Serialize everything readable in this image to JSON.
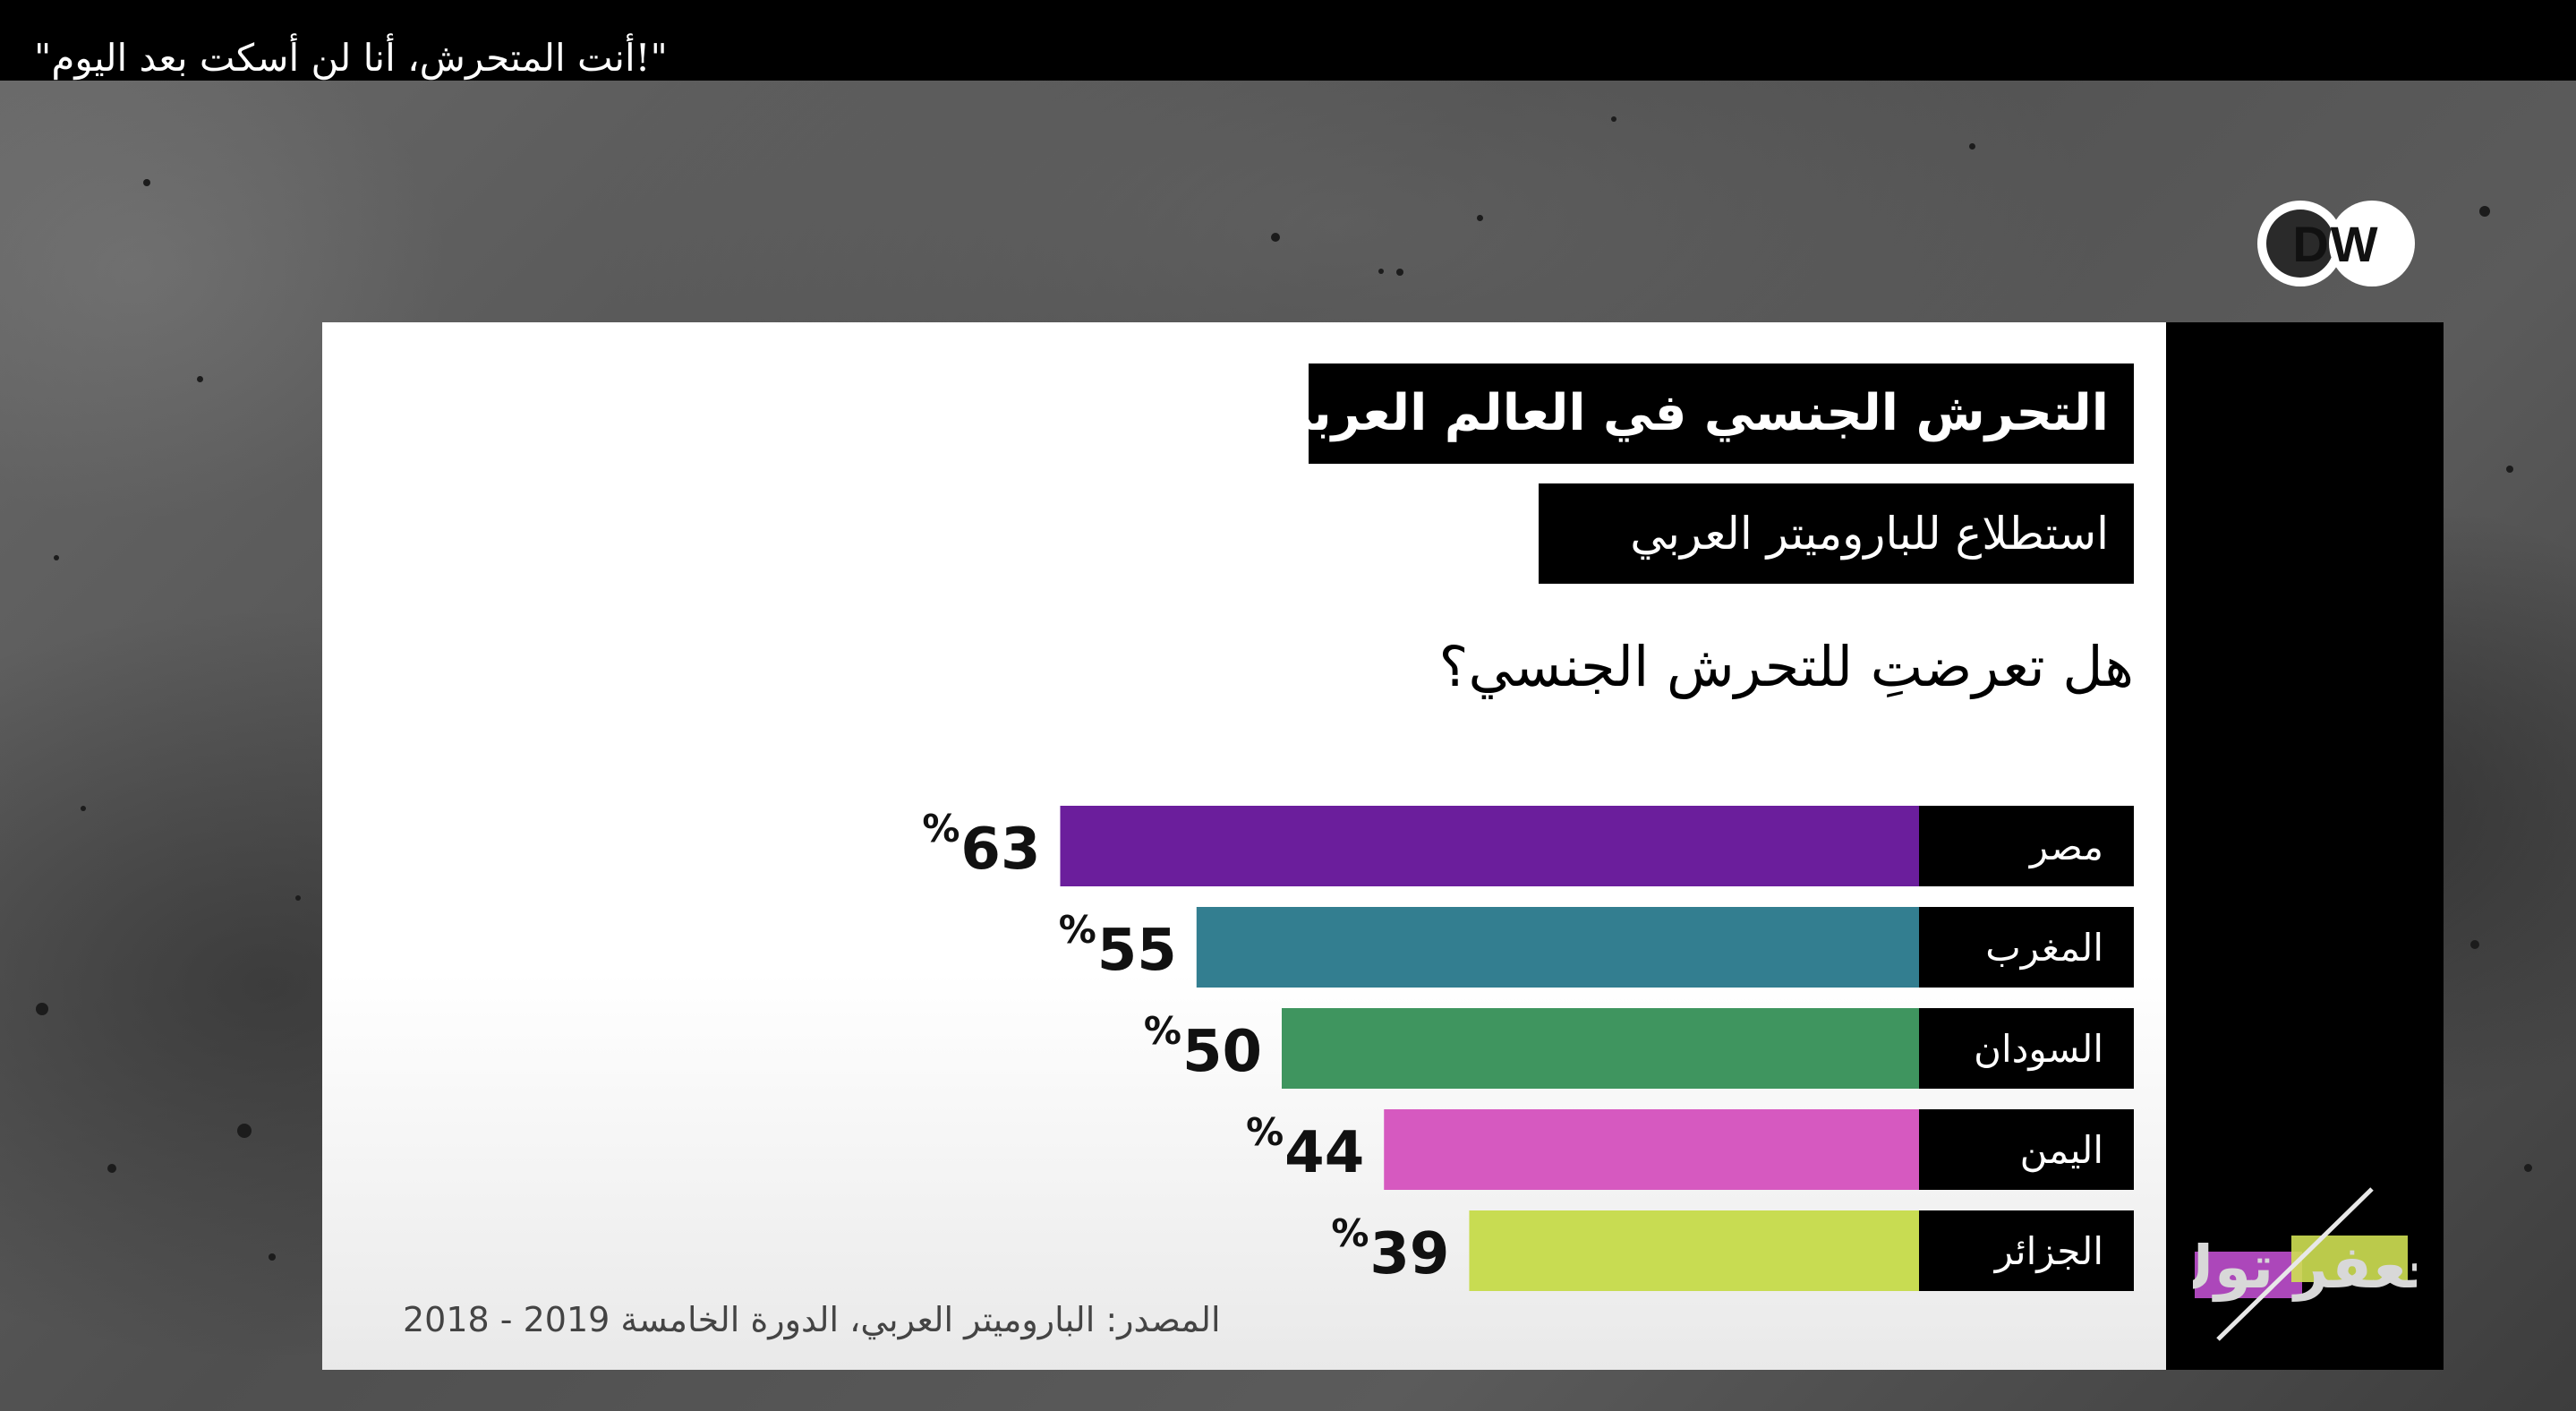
{
  "caption": {
    "text": "\"!أنت المتحرش، أنا لن أسكت بعد اليوم\""
  },
  "logo": {
    "brand": "DW"
  },
  "infographic": {
    "title": "التحرش الجنسي في العالم العربي",
    "subtitle": "استطلاع للباروميتر العربي",
    "question": "هل تعرضتِ للتحرش الجنسي؟",
    "source": "المصدر: الباروميتر العربي، الدورة الخامسة 2019 - 2018"
  },
  "show_logo": {
    "text": "جعفر توك",
    "colors": [
      "#b54bc4",
      "#cfe053"
    ]
  },
  "chart_data": {
    "type": "bar",
    "orientation": "horizontal",
    "categories": [
      "مصر",
      "المغرب",
      "السودان",
      "اليمن",
      "الجزائر"
    ],
    "values": [
      63,
      55,
      50,
      44,
      39
    ],
    "unit": "%",
    "value_labels": [
      "63",
      "55",
      "50",
      "44",
      "39"
    ],
    "colors": [
      "#6b1e9c",
      "#337e90",
      "#3f955f",
      "#d659c0",
      "#c8dc52"
    ],
    "category_label_bg": "#000000",
    "xlim": [
      0,
      100
    ],
    "grid": false,
    "legend": "none"
  }
}
